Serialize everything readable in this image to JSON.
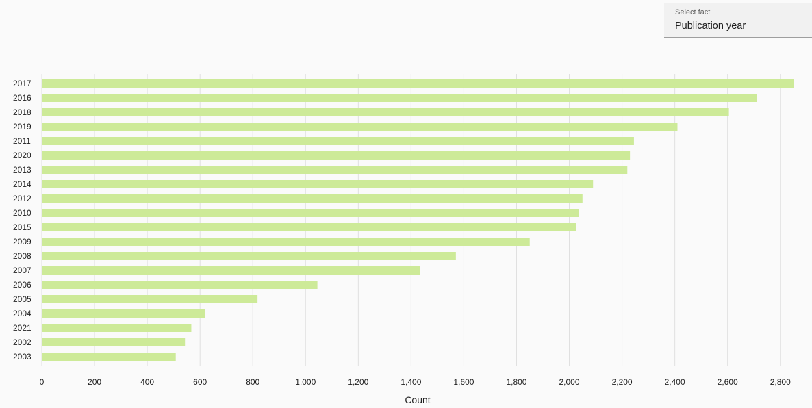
{
  "select_fact": {
    "label": "Select fact",
    "value": "Publication year"
  },
  "chart_data": {
    "type": "bar",
    "orientation": "horizontal",
    "categories": [
      "2017",
      "2016",
      "2018",
      "2019",
      "2011",
      "2020",
      "2013",
      "2014",
      "2012",
      "2010",
      "2015",
      "2009",
      "2008",
      "2007",
      "2006",
      "2005",
      "2004",
      "2021",
      "2002",
      "2003"
    ],
    "values": [
      2850,
      2710,
      2605,
      2410,
      2245,
      2230,
      2220,
      2090,
      2050,
      2035,
      2025,
      1850,
      1570,
      1435,
      1045,
      818,
      620,
      567,
      543,
      508
    ],
    "xlabel": "Count",
    "ylabel": "",
    "xlim": [
      0,
      2850
    ],
    "xticks": [
      0,
      200,
      400,
      600,
      800,
      1000,
      1200,
      1400,
      1600,
      1800,
      2000,
      2200,
      2400,
      2600,
      2800
    ],
    "xtick_labels": [
      "0",
      "200",
      "400",
      "600",
      "800",
      "1,000",
      "1,200",
      "1,400",
      "1,600",
      "1,800",
      "2,000",
      "2,200",
      "2,400",
      "2,600",
      "2,800"
    ],
    "grid": true,
    "legend": "none",
    "bar_color": "#cdea98",
    "grid_color": "#e0e0e0"
  }
}
